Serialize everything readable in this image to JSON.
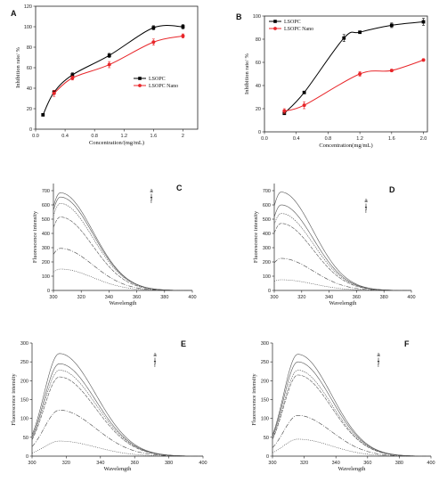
{
  "colors": {
    "series1": "#000000",
    "series2": "#e8262a",
    "spectra": "#777777",
    "axis": "#222222"
  },
  "chart_data": [
    {
      "id": "A",
      "type": "line",
      "panel_label": "A",
      "xlabel": "Concentration/(mg/mL)",
      "ylabel": "Inhibition rate/ %",
      "xlim": [
        0,
        2.2
      ],
      "ylim": [
        0,
        120
      ],
      "xticks": [
        0.0,
        0.4,
        0.8,
        1.2,
        1.6,
        2.0
      ],
      "xtick_labels": [
        "0.0",
        "0.4",
        "0.8",
        "1.2",
        "1.6",
        "2"
      ],
      "yticks": [
        0,
        20,
        40,
        60,
        80,
        100,
        120
      ],
      "legend_position": "middle-right",
      "series": [
        {
          "name": "LSOPC",
          "marker": "square",
          "color": "#000000",
          "x": [
            0.1,
            0.25,
            0.5,
            1.0,
            1.6,
            2.0
          ],
          "y": [
            14,
            36,
            53,
            72,
            99,
            100
          ],
          "err": [
            1,
            2,
            2,
            2,
            2,
            2
          ]
        },
        {
          "name": "LSOPC Nano",
          "marker": "circle",
          "color": "#e8262a",
          "x": [
            0.25,
            0.5,
            1.0,
            1.6,
            2.0
          ],
          "y": [
            35,
            50,
            63,
            85,
            91
          ],
          "err": [
            3,
            2,
            3,
            3,
            2
          ]
        }
      ]
    },
    {
      "id": "B",
      "type": "line",
      "panel_label": "B",
      "xlabel": "Concentration(mg/mL)",
      "ylabel": "Inhibition rate/ %",
      "xlim": [
        0.0,
        2.05
      ],
      "ylim": [
        0,
        100
      ],
      "xticks": [
        0.0,
        0.4,
        0.8,
        1.2,
        1.6,
        2.0
      ],
      "xtick_labels": [
        "0.0",
        "0.4",
        "0.8",
        "1.2",
        "1.6",
        "2.0"
      ],
      "yticks": [
        0,
        20,
        40,
        60,
        80,
        100
      ],
      "legend_position": "top-left",
      "series": [
        {
          "name": "LSOPC",
          "marker": "square",
          "color": "#000000",
          "x": [
            0.25,
            0.5,
            1.0,
            1.2,
            1.6,
            2.0
          ],
          "y": [
            16,
            34,
            81,
            86,
            92,
            95
          ],
          "err": [
            1,
            1,
            3,
            1,
            2,
            3
          ]
        },
        {
          "name": "LSOPC Nano",
          "marker": "circle",
          "color": "#e8262a",
          "x": [
            0.25,
            0.5,
            1.2,
            1.6,
            2.0
          ],
          "y": [
            18,
            23,
            50,
            53,
            62
          ],
          "err": [
            2,
            3,
            2,
            1,
            1
          ]
        }
      ]
    },
    {
      "id": "C",
      "type": "line",
      "panel_label": "C",
      "xlabel": "Wavelength",
      "ylabel": "Fluorescence intensity",
      "xlim": [
        300,
        400
      ],
      "ylim": [
        0,
        750
      ],
      "xticks": [
        300,
        320,
        340,
        360,
        380,
        400
      ],
      "yticks": [
        0,
        100,
        200,
        300,
        400,
        500,
        600,
        700
      ],
      "annotation": {
        "top": "a",
        "bottom": "f"
      },
      "peak_x": 305,
      "series": [
        {
          "peak": 685
        },
        {
          "peak": 655
        },
        {
          "peak": 610
        },
        {
          "peak": 515
        },
        {
          "peak": 295
        },
        {
          "peak": 150
        }
      ]
    },
    {
      "id": "D",
      "type": "line",
      "panel_label": "D",
      "xlabel": "Wavelength",
      "ylabel": "Fluorescence intensity",
      "xlim": [
        300,
        400
      ],
      "ylim": [
        0,
        750
      ],
      "xticks": [
        300,
        320,
        340,
        360,
        380,
        400
      ],
      "yticks": [
        0,
        100,
        200,
        300,
        400,
        500,
        600,
        700
      ],
      "annotation": {
        "top": "a",
        "bottom": "f"
      },
      "peak_x": 305,
      "series": [
        {
          "peak": 690
        },
        {
          "peak": 600
        },
        {
          "peak": 540
        },
        {
          "peak": 470
        },
        {
          "peak": 225
        },
        {
          "peak": 75
        }
      ]
    },
    {
      "id": "E",
      "type": "line",
      "panel_label": "E",
      "xlabel": "Wavelength",
      "ylabel": "Fluorescence intensity",
      "xlim": [
        300,
        400
      ],
      "ylim": [
        0,
        300
      ],
      "xticks": [
        300,
        320,
        340,
        360,
        380,
        400
      ],
      "yticks": [
        0,
        50,
        100,
        150,
        200,
        250,
        300
      ],
      "annotation": {
        "top": "a",
        "bottom": "f"
      },
      "peak_x": 316,
      "series": [
        {
          "peak": 272
        },
        {
          "peak": 245
        },
        {
          "peak": 228
        },
        {
          "peak": 210
        },
        {
          "peak": 122
        },
        {
          "peak": 40
        }
      ]
    },
    {
      "id": "F",
      "type": "line",
      "panel_label": "F",
      "xlabel": "Wavelength",
      "ylabel": "Fluorescence intensity",
      "xlim": [
        300,
        400
      ],
      "ylim": [
        0,
        300
      ],
      "xticks": [
        300,
        320,
        340,
        360,
        380,
        400
      ],
      "yticks": [
        0,
        50,
        100,
        150,
        200,
        250,
        300
      ],
      "annotation": {
        "top": "a",
        "bottom": "f"
      },
      "peak_x": 316,
      "series": [
        {
          "peak": 270
        },
        {
          "peak": 250
        },
        {
          "peak": 228
        },
        {
          "peak": 215
        },
        {
          "peak": 108
        },
        {
          "peak": 45
        }
      ]
    }
  ]
}
